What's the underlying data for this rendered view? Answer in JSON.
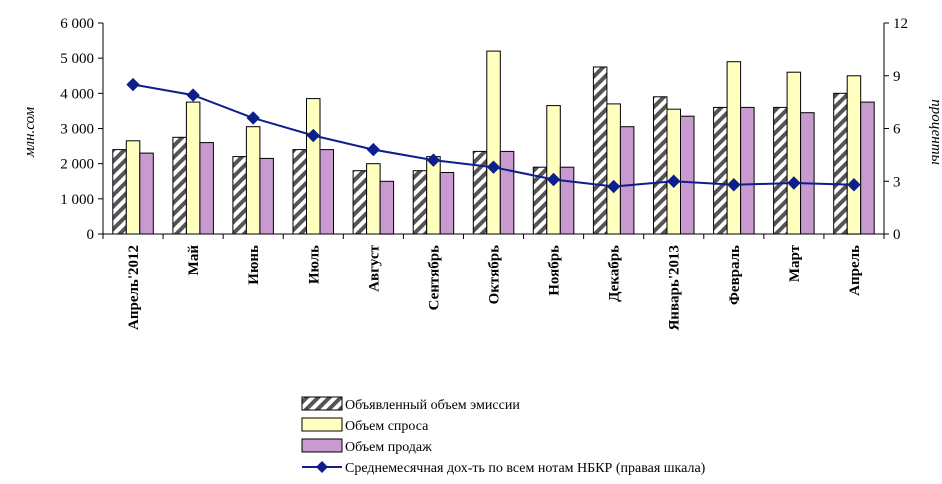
{
  "chart_data": {
    "type": "bar",
    "title": "",
    "ylabel": "млн.сом",
    "y2label": "проценты",
    "ylim": [
      0,
      6000
    ],
    "y2lim": [
      0,
      12
    ],
    "yticks": [
      "0",
      "1 000",
      "2 000",
      "3 000",
      "4 000",
      "5 000",
      "6 000"
    ],
    "y2ticks": [
      "0",
      "3",
      "6",
      "9",
      "12"
    ],
    "categories": [
      "Апрель'2012",
      "Май",
      "Июнь",
      "Июль",
      "Август",
      "Сентябрь",
      "Октябрь",
      "Ноябрь",
      "Декабрь",
      "Январь'2013",
      "Февраль",
      "Март",
      "Апрель"
    ],
    "series": [
      {
        "name": "Объявленный объем эмиссии",
        "kind": "bar",
        "values": [
          2400,
          2750,
          2200,
          2400,
          1800,
          1800,
          2350,
          1900,
          4750,
          3900,
          3600,
          3600,
          4000
        ]
      },
      {
        "name": "Объем спроса",
        "kind": "bar",
        "values": [
          2650,
          3750,
          3050,
          3850,
          2000,
          2200,
          5200,
          3650,
          3700,
          3550,
          4900,
          4600,
          4500
        ]
      },
      {
        "name": "Объем продаж",
        "kind": "bar",
        "values": [
          2300,
          2600,
          2150,
          2400,
          1500,
          1750,
          2350,
          1900,
          3050,
          3350,
          3600,
          3450,
          3750
        ]
      },
      {
        "name": "Среднемесячная дох-ть по всем нотам НБКР (правая шкала)",
        "kind": "line",
        "axis": "right",
        "values": [
          8.5,
          7.9,
          6.6,
          5.6,
          4.8,
          4.2,
          3.8,
          3.1,
          2.7,
          3.0,
          2.8,
          2.9,
          2.8
        ]
      }
    ],
    "colors": {
      "emission_fill": "#ffffff",
      "emission_hatch": "#555555",
      "demand": "#ffffc0",
      "sales": "#c89ad0",
      "line": "#0d1f8c"
    },
    "grid": false,
    "legend_position": "bottom"
  }
}
